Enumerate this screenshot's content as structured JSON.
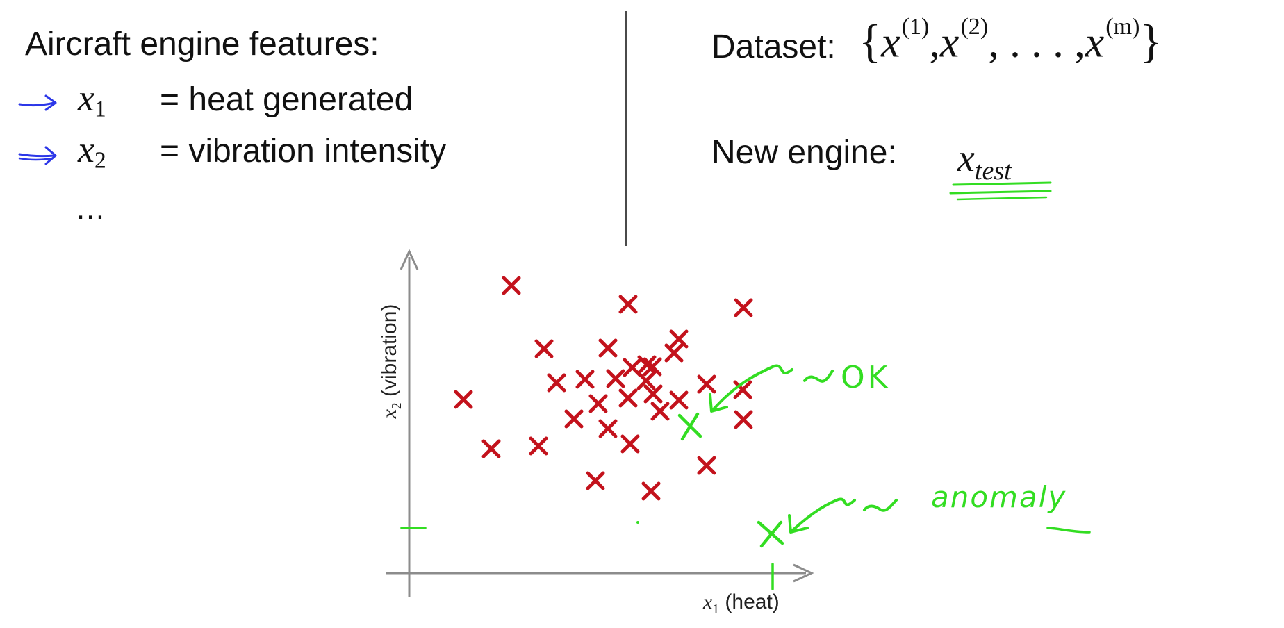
{
  "left_panel": {
    "heading": "Aircraft engine features:",
    "features": [
      {
        "variable": "x",
        "subscript": "1",
        "description": "= heat generated"
      },
      {
        "variable": "x",
        "subscript": "2",
        "description": "= vibration intensity"
      }
    ],
    "ellipsis": "…"
  },
  "right_panel": {
    "dataset_label": "Dataset:",
    "dataset_set": {
      "open": "{",
      "var": "x",
      "sup1": "(1)",
      "sup2": "(2)",
      "sep": ",",
      "dots": ". . . ,",
      "supm": "(m)",
      "close": "}"
    },
    "newengine_label": "New engine:",
    "xtest": {
      "var": "x",
      "sub": "test"
    }
  },
  "plot": {
    "ylabel": {
      "var": "x",
      "sub": "2",
      "text": "(vibration)"
    },
    "xlabel": {
      "var": "x",
      "sub": "1",
      "text": "(heat)"
    },
    "annotation_ok": "OK",
    "annotation_anomaly": "anomaly",
    "colors": {
      "train": "#c3121c",
      "ink": "#33dd22",
      "axis": "#8c8c8c",
      "arrow": "#2c37e8"
    }
  }
}
